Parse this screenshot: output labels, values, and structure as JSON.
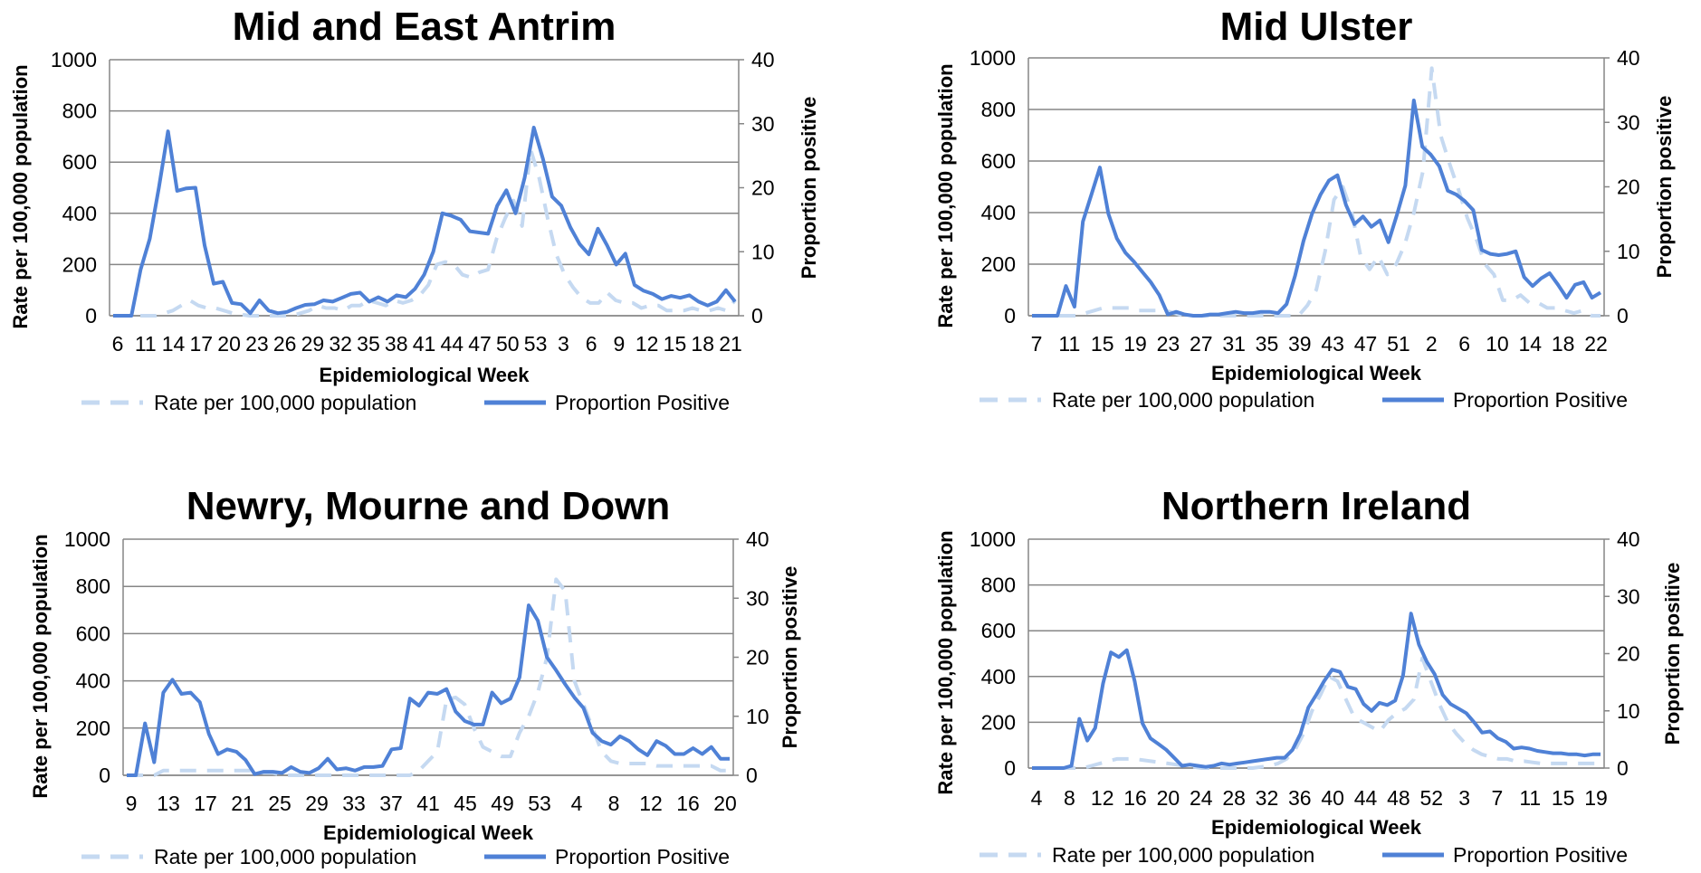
{
  "colors": {
    "rate": "#c5d9f1",
    "proportion": "#4f81d6",
    "grid": "#868686",
    "axis": "#868686"
  },
  "legend": {
    "rate": "Rate per 100,000 population",
    "proportion": "Proportion Positive"
  },
  "chart_data": [
    {
      "type": "line",
      "title": "Mid and East Antrim",
      "xlabel": "Epidemiological Week",
      "ylabel": "Rate per 100,000 population",
      "y2label": "Proportion positive",
      "ylim": [
        0,
        1000
      ],
      "y2lim": [
        0,
        40
      ],
      "yticks": [
        "0",
        "200",
        "400",
        "600",
        "800",
        "1000"
      ],
      "y2ticks": [
        "0",
        "10",
        "20",
        "30",
        "40"
      ],
      "xtick_labels": [
        "6",
        "11",
        "14",
        "17",
        "20",
        "23",
        "26",
        "29",
        "32",
        "35",
        "38",
        "41",
        "44",
        "47",
        "50",
        "53",
        "3",
        "6",
        "9",
        "12",
        "15",
        "18",
        "21"
      ],
      "grid": true,
      "legend_position": "bottom",
      "series": [
        {
          "name": "Rate per 100,000 population",
          "axis": "left",
          "style": "dashed",
          "values": [
            0,
            0,
            0,
            0,
            0,
            0,
            10,
            20,
            40,
            60,
            40,
            30,
            30,
            20,
            10,
            5,
            0,
            0,
            0,
            0,
            0,
            0,
            10,
            20,
            40,
            30,
            30,
            20,
            40,
            40,
            60,
            50,
            40,
            60,
            50,
            60,
            80,
            120,
            200,
            210,
            200,
            160,
            150,
            170,
            180,
            300,
            380,
            450,
            350,
            650,
            540,
            380,
            240,
            160,
            110,
            70,
            50,
            50,
            90,
            60,
            50,
            50,
            30,
            40,
            40,
            20,
            20,
            20,
            30,
            20,
            20,
            30,
            20,
            60
          ]
        },
        {
          "name": "Proportion Positive",
          "axis": "right",
          "style": "solid",
          "values": [
            0,
            0,
            0,
            7.2,
            12,
            20,
            28.8,
            19.5,
            19.9,
            20,
            11,
            5,
            5.3,
            2,
            1.8,
            0.4,
            2.4,
            0.8,
            0.4,
            0.6,
            1.2,
            1.7,
            1.8,
            2.4,
            2.2,
            2.8,
            3.4,
            3.6,
            2.2,
            2.9,
            2.2,
            3.2,
            2.9,
            4.2,
            6.4,
            10,
            16,
            15.6,
            15,
            13.2,
            13,
            12.8,
            17.2,
            19.6,
            16,
            21.6,
            29.4,
            24.5,
            18.6,
            17.2,
            13.8,
            11.2,
            9.6,
            13.6,
            11,
            8,
            9.7,
            4.8,
            3.9,
            3.4,
            2.6,
            3.1,
            2.8,
            3.2,
            2.2,
            1.6,
            2.2,
            4,
            2.2
          ]
        }
      ]
    },
    {
      "type": "line",
      "title": "Mid Ulster",
      "xlabel": "Epidemiological Week",
      "ylabel": "Rate per 100,000 population",
      "y2label": "Proportion positive",
      "ylim": [
        0,
        1000
      ],
      "y2lim": [
        0,
        40
      ],
      "yticks": [
        "0",
        "200",
        "400",
        "600",
        "800",
        "1000"
      ],
      "y2ticks": [
        "0",
        "10",
        "20",
        "30",
        "40"
      ],
      "xtick_labels": [
        "7",
        "11",
        "15",
        "19",
        "23",
        "27",
        "31",
        "35",
        "39",
        "43",
        "47",
        "51",
        "2",
        "6",
        "10",
        "14",
        "18",
        "22"
      ],
      "grid": true,
      "legend_position": "bottom",
      "series": [
        {
          "name": "Rate per 100,000 population",
          "axis": "left",
          "style": "dashed",
          "values": [
            0,
            0,
            0,
            0,
            0,
            0,
            10,
            20,
            30,
            30,
            30,
            30,
            20,
            20,
            20,
            20,
            10,
            0,
            0,
            0,
            0,
            0,
            0,
            0,
            0,
            0,
            0,
            0,
            0,
            0,
            0,
            40,
            100,
            250,
            450,
            500,
            400,
            230,
            180,
            230,
            160,
            200,
            280,
            400,
            560,
            960,
            700,
            590,
            490,
            380,
            300,
            200,
            160,
            60,
            60,
            80,
            50,
            50,
            30,
            30,
            20,
            10,
            20,
            0,
            0
          ]
        },
        {
          "name": "Proportion Positive",
          "axis": "right",
          "style": "solid",
          "values": [
            0,
            0,
            0,
            0,
            4.6,
            1.4,
            14.6,
            18.8,
            23,
            15.8,
            12,
            9.8,
            8.4,
            6.8,
            5.2,
            3.2,
            0.2,
            0.6,
            0.2,
            0,
            0,
            0.2,
            0.2,
            0.4,
            0.6,
            0.4,
            0.4,
            0.6,
            0.6,
            0.4,
            1.8,
            6.2,
            11.6,
            15.8,
            18.8,
            21,
            21.8,
            17.2,
            14.2,
            15.4,
            13.8,
            14.8,
            11.4,
            15.6,
            20.2,
            33.4,
            26.2,
            25,
            23.2,
            19.4,
            18.8,
            17.8,
            16.4,
            10.2,
            9.6,
            9.4,
            9.6,
            10,
            6,
            4.6,
            5.8,
            6.6,
            4.8,
            2.8,
            4.8,
            5.2,
            2.8,
            3.6
          ]
        }
      ]
    },
    {
      "type": "line",
      "title": "Newry, Mourne and Down",
      "xlabel": "Epidemiological Week",
      "ylabel": "Rate per 100,000 population",
      "y2label": "Proportion positive",
      "ylim": [
        0,
        1000
      ],
      "y2lim": [
        0,
        40
      ],
      "yticks": [
        "0",
        "200",
        "400",
        "600",
        "800",
        "1000"
      ],
      "y2ticks": [
        "0",
        "10",
        "20",
        "30",
        "40"
      ],
      "xtick_labels": [
        "9",
        "13",
        "17",
        "21",
        "25",
        "29",
        "33",
        "37",
        "41",
        "45",
        "49",
        "53",
        "4",
        "8",
        "12",
        "16",
        "20"
      ],
      "grid": true,
      "legend_position": "bottom",
      "series": [
        {
          "name": "Rate per 100,000 population",
          "axis": "left",
          "style": "dashed",
          "values": [
            0,
            0,
            0,
            0,
            20,
            20,
            20,
            20,
            20,
            20,
            20,
            20,
            20,
            20,
            20,
            10,
            10,
            0,
            0,
            0,
            0,
            0,
            0,
            0,
            0,
            0,
            0,
            0,
            0,
            0,
            0,
            0,
            20,
            60,
            100,
            320,
            330,
            300,
            200,
            120,
            100,
            80,
            80,
            180,
            250,
            350,
            500,
            830,
            780,
            400,
            300,
            200,
            100,
            60,
            50,
            50,
            50,
            50,
            40,
            40,
            40,
            40,
            40,
            40,
            40,
            20,
            20
          ]
        },
        {
          "name": "Proportion Positive",
          "axis": "right",
          "style": "solid",
          "values": [
            0,
            0,
            8.8,
            2.2,
            14,
            16.2,
            13.8,
            14,
            12.4,
            7,
            3.6,
            4.4,
            4,
            2.6,
            0.2,
            0.6,
            0.6,
            0.4,
            1.4,
            0.6,
            0.4,
            1.2,
            2.8,
            1,
            1.2,
            0.8,
            1.4,
            1.4,
            1.6,
            4.4,
            4.6,
            13,
            11.8,
            14,
            13.8,
            14.6,
            10.8,
            9.2,
            8.6,
            8.6,
            14,
            12.2,
            13,
            16.6,
            28.8,
            26.2,
            20,
            17.8,
            15.4,
            13.2,
            11.4,
            7.2,
            5.8,
            5.2,
            6.6,
            5.8,
            4.4,
            3.4,
            5.8,
            5,
            3.6,
            3.6,
            4.6,
            3.6,
            4.8,
            2.8,
            2.8
          ]
        }
      ]
    },
    {
      "type": "line",
      "title": "Northern Ireland",
      "xlabel": "Epidemiological Week",
      "ylabel": "Rate per 100,000 population",
      "y2label": "Proportion positive",
      "ylim": [
        0,
        1000
      ],
      "y2lim": [
        0,
        40
      ],
      "yticks": [
        "0",
        "200",
        "400",
        "600",
        "800",
        "1000"
      ],
      "y2ticks": [
        "0",
        "10",
        "20",
        "30",
        "40"
      ],
      "xtick_labels": [
        "4",
        "8",
        "12",
        "16",
        "20",
        "24",
        "28",
        "32",
        "36",
        "40",
        "44",
        "48",
        "52",
        "3",
        "7",
        "11",
        "15",
        "19"
      ],
      "grid": true,
      "legend_position": "bottom",
      "series": [
        {
          "name": "Rate per 100,000 population",
          "axis": "left",
          "style": "dashed",
          "values": [
            0,
            0,
            0,
            0,
            0,
            0,
            0,
            10,
            20,
            30,
            40,
            40,
            40,
            35,
            30,
            25,
            20,
            15,
            10,
            5,
            0,
            0,
            0,
            0,
            0,
            0,
            0,
            5,
            10,
            20,
            40,
            80,
            150,
            250,
            320,
            400,
            380,
            300,
            220,
            200,
            180,
            160,
            210,
            240,
            260,
            300,
            480,
            380,
            280,
            200,
            150,
            110,
            80,
            60,
            50,
            40,
            40,
            30,
            30,
            25,
            20,
            20,
            20,
            20,
            20,
            20,
            20,
            20
          ]
        },
        {
          "name": "Proportion Positive",
          "axis": "right",
          "style": "solid",
          "values": [
            0,
            0,
            0,
            0,
            0,
            0.4,
            8.6,
            4.8,
            7,
            14.8,
            20.2,
            19.4,
            20.6,
            15.2,
            7.8,
            5.2,
            4.2,
            3.2,
            1.8,
            0.4,
            0.6,
            0.4,
            0.2,
            0.4,
            0.8,
            0.6,
            0.8,
            1,
            1.2,
            1.4,
            1.6,
            1.8,
            1.8,
            3.2,
            6,
            10.6,
            12.8,
            15.2,
            17.2,
            16.8,
            14.2,
            13.8,
            11.2,
            10,
            11.4,
            11,
            11.8,
            16.2,
            27,
            21.6,
            18.6,
            16.4,
            12.8,
            11.2,
            10.4,
            9.6,
            8,
            6.2,
            6.4,
            5.2,
            4.6,
            3.4,
            3.6,
            3.4,
            3,
            2.8,
            2.6,
            2.6,
            2.4,
            2.4,
            2.2,
            2.4,
            2.4
          ]
        }
      ]
    }
  ]
}
